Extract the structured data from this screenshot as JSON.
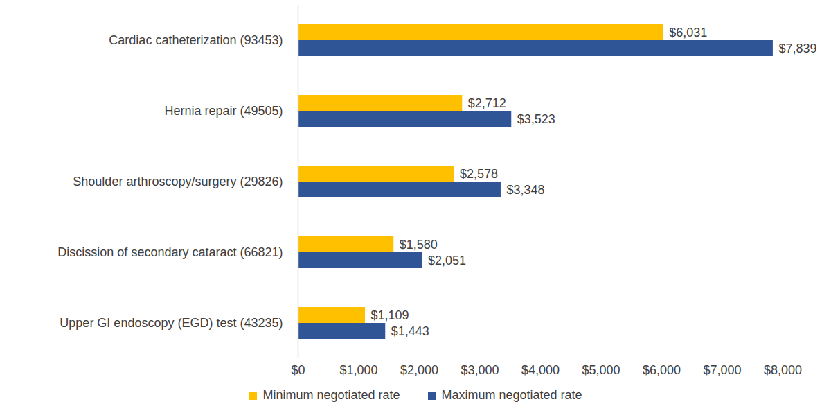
{
  "chart_data": {
    "type": "bar",
    "orientation": "horizontal",
    "categories": [
      "Cardiac catheterization (93453)",
      "Hernia repair (49505)",
      "Shoulder arthroscopy/surgery (29826)",
      "Discission of secondary cataract (66821)",
      "Upper GI endoscopy (EGD) test (43235)"
    ],
    "series": [
      {
        "name": "Minimum negotiated rate",
        "color": "#FFC000",
        "values": [
          6031,
          2712,
          2578,
          1580,
          1109
        ],
        "value_labels": [
          "$6,031",
          "$2,712",
          "$2,578",
          "$1,580",
          "$1,109"
        ]
      },
      {
        "name": "Maximum negotiated rate",
        "color": "#2F5597",
        "values": [
          7839,
          3523,
          3348,
          2051,
          1443
        ],
        "value_labels": [
          "$7,839",
          "$3,523",
          "$3,348",
          "$2,051",
          "$1,443"
        ]
      }
    ],
    "xlim": [
      0,
      8000
    ],
    "xticks": [
      {
        "value": 0,
        "label": "$0"
      },
      {
        "value": 1000,
        "label": "$1,000"
      },
      {
        "value": 2000,
        "label": "$2,000"
      },
      {
        "value": 3000,
        "label": "$3,000"
      },
      {
        "value": 4000,
        "label": "$4,000"
      },
      {
        "value": 5000,
        "label": "$5,000"
      },
      {
        "value": 6000,
        "label": "$6,000"
      },
      {
        "value": 7000,
        "label": "$7,000"
      },
      {
        "value": 8000,
        "label": "$8,000"
      }
    ],
    "grid": false,
    "data_labels": true,
    "legend": "bottom"
  }
}
